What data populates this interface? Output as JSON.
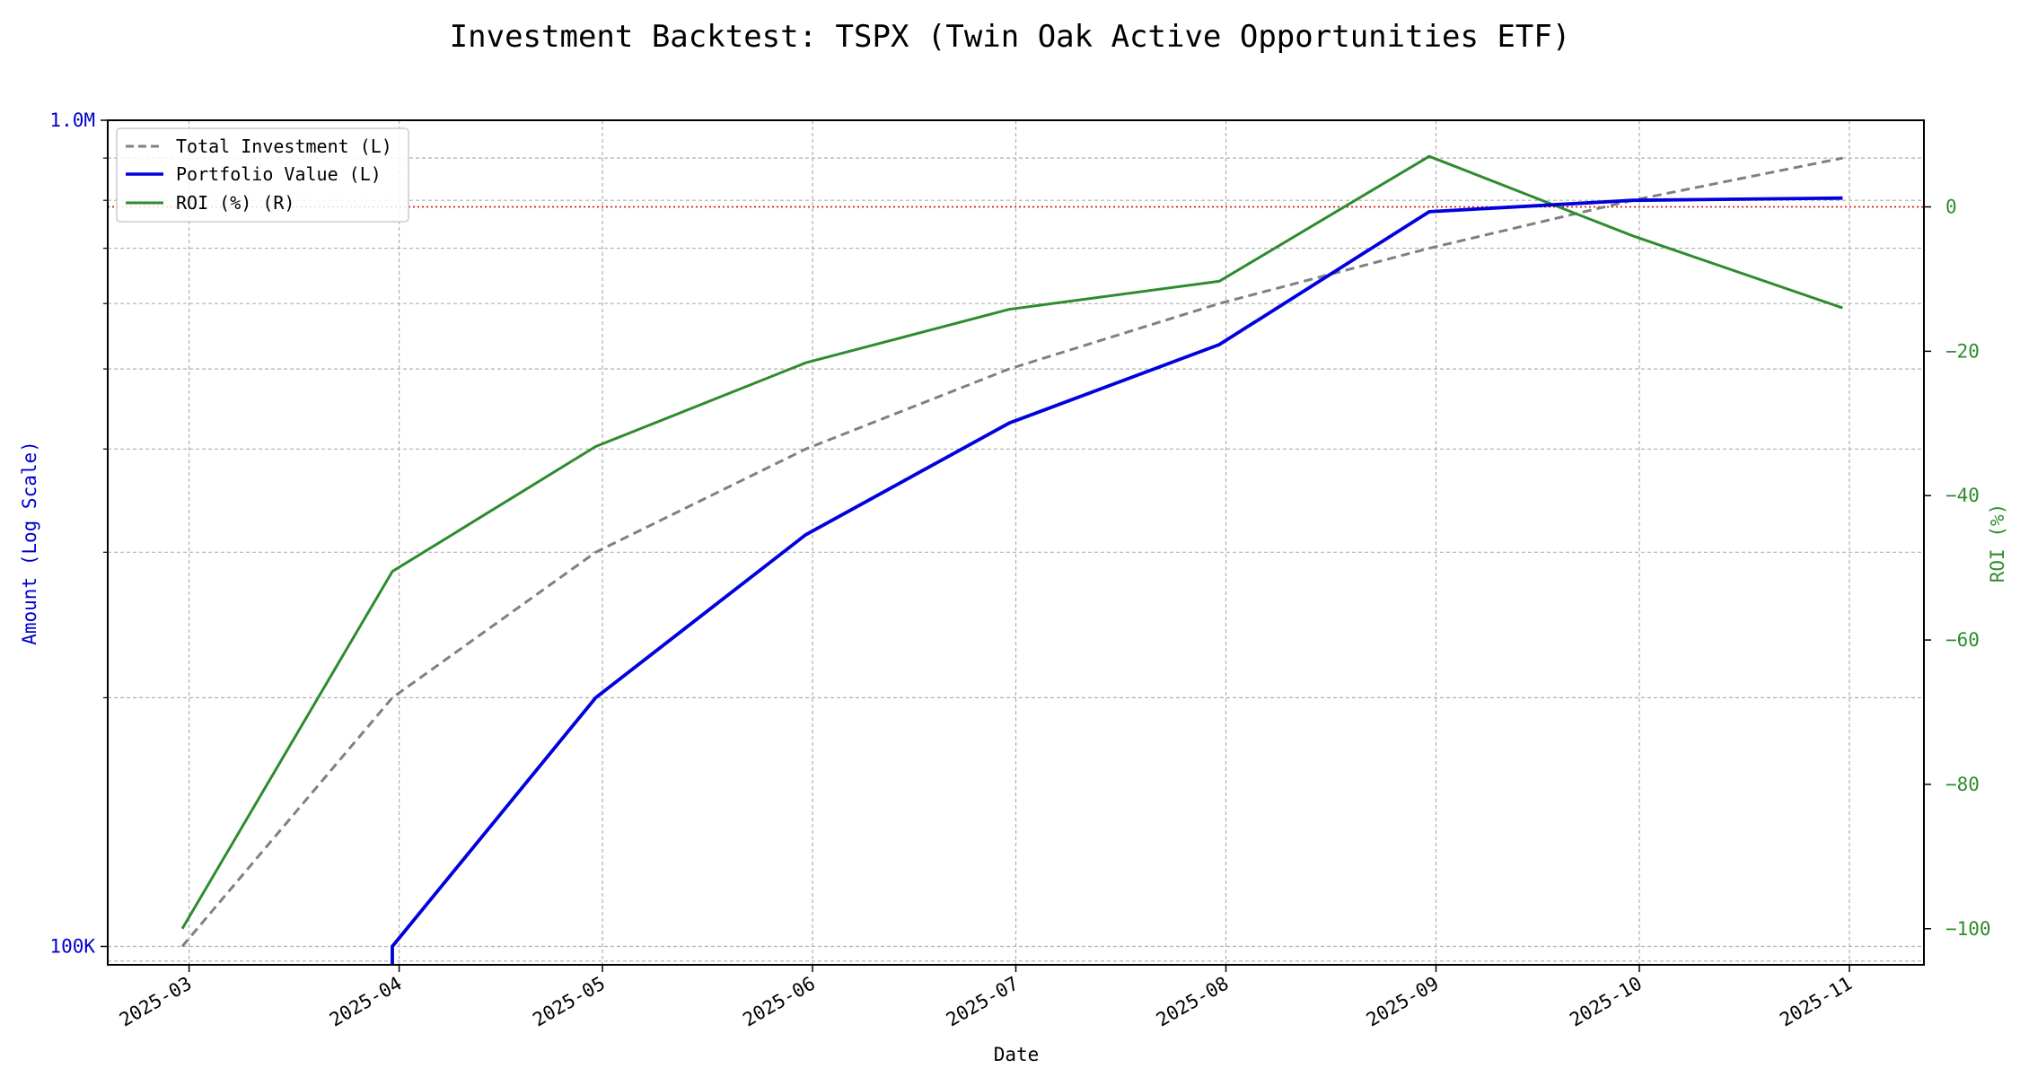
{
  "chart_data": {
    "type": "line",
    "title": "Investment Backtest: TSPX (Twin Oak Active Opportunities ETF)",
    "xlabel": "Date",
    "ylabel_left": "Amount (Log Scale)",
    "ylabel_right": "ROI (%)",
    "x_ticks": [
      "2025-03",
      "2025-04",
      "2025-05",
      "2025-06",
      "2025-07",
      "2025-08",
      "2025-09",
      "2025-10",
      "2025-11"
    ],
    "left_axis": {
      "scale": "log",
      "range": [
        95000,
        1000000
      ],
      "major_ticks": [
        {
          "value": 100000,
          "label": "100K"
        },
        {
          "value": 1000000,
          "label": "1.0M"
        }
      ],
      "minor_ticks": [
        200000,
        300000,
        400000,
        500000,
        600000,
        700000,
        800000,
        900000
      ]
    },
    "right_axis": {
      "scale": "linear",
      "range": [
        -105,
        12
      ],
      "ticks": [
        0,
        -20,
        -40,
        -60,
        -80,
        -100
      ]
    },
    "grid": true,
    "legend_position": "top-left",
    "reference_line": {
      "axis": "right",
      "value": 0,
      "color": "#cc0000",
      "style": "dotted"
    },
    "series": [
      {
        "name": "Total Investment (L)",
        "axis": "left",
        "color": "#808080",
        "style": "dashed",
        "x": [
          "2025-02-28",
          "2025-03-31",
          "2025-04-30",
          "2025-05-31",
          "2025-06-30",
          "2025-07-31",
          "2025-08-31",
          "2025-09-30",
          "2025-10-31"
        ],
        "values": [
          100000,
          200000,
          300000,
          400000,
          500000,
          600000,
          700000,
          800000,
          900000
        ]
      },
      {
        "name": "Portfolio Value (L)",
        "axis": "left",
        "color": "#0000dd",
        "style": "solid",
        "x": [
          "2025-03-31",
          "2025-03-31",
          "2025-04-30",
          "2025-05-31",
          "2025-06-30",
          "2025-07-31",
          "2025-08-31",
          "2025-09-30",
          "2025-10-31"
        ],
        "values": [
          0,
          100000,
          200000,
          315000,
          430000,
          535000,
          775000,
          800000,
          805000
        ]
      },
      {
        "name": "ROI (%) (R)",
        "axis": "right",
        "color": "#2e8b2e",
        "style": "solid",
        "x": [
          "2025-02-28",
          "2025-03-31",
          "2025-04-30",
          "2025-05-31",
          "2025-06-30",
          "2025-07-31",
          "2025-08-31",
          "2025-09-30",
          "2025-10-31"
        ],
        "values": [
          -100,
          -50.5,
          -33.2,
          -21.6,
          -14.2,
          -10.3,
          7,
          -4,
          -14
        ]
      }
    ]
  }
}
